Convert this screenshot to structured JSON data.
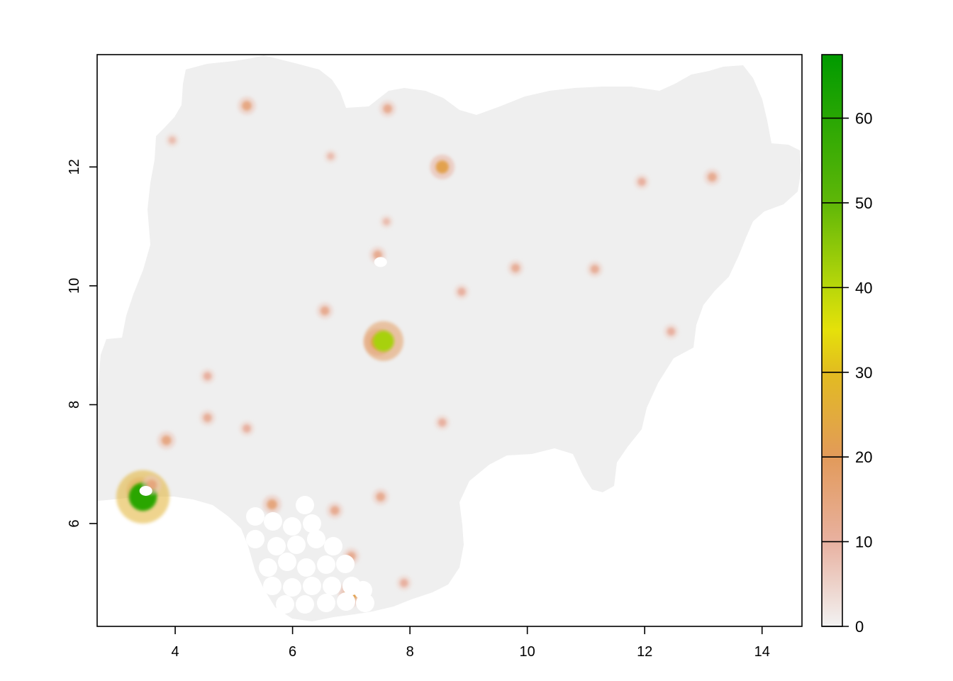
{
  "chart_data": {
    "type": "heatmap",
    "title": "",
    "xlabel": "",
    "ylabel": "",
    "xlim": [
      2.67,
      14.68
    ],
    "ylim": [
      4.27,
      13.89
    ],
    "x_ticks": [
      4,
      6,
      8,
      10,
      12,
      14
    ],
    "y_ticks": [
      6,
      8,
      10,
      12
    ],
    "grid": false,
    "legend": {
      "placement": "right",
      "range": [
        0,
        67.5
      ],
      "ticks": [
        0,
        10,
        20,
        30,
        40,
        50,
        60
      ],
      "color_stops": [
        {
          "value": 0,
          "color": "#F2F2F2"
        },
        {
          "value": 10,
          "color": "#E8B1A0"
        },
        {
          "value": 20,
          "color": "#E29A5A"
        },
        {
          "value": 30,
          "color": "#E2BC20"
        },
        {
          "value": 35,
          "color": "#E5E10A"
        },
        {
          "value": 40,
          "color": "#B9D70A"
        },
        {
          "value": 50,
          "color": "#5FB708"
        },
        {
          "value": 67.5,
          "color": "#009A00"
        }
      ]
    },
    "background_color": "#EFEFEF",
    "hotspots": [
      {
        "x": 3.4,
        "y": 6.55,
        "value": 25
      },
      {
        "x": 3.45,
        "y": 6.45,
        "value": 60
      },
      {
        "x": 3.6,
        "y": 6.65,
        "value": 15
      },
      {
        "x": 3.85,
        "y": 7.4,
        "value": 14
      },
      {
        "x": 7.45,
        "y": 9.05,
        "value": 25
      },
      {
        "x": 7.55,
        "y": 9.07,
        "value": 42
      },
      {
        "x": 8.55,
        "y": 12.0,
        "value": 22
      },
      {
        "x": 7.45,
        "y": 10.52,
        "value": 12
      },
      {
        "x": 5.65,
        "y": 6.32,
        "value": 15
      },
      {
        "x": 7.5,
        "y": 6.45,
        "value": 12
      },
      {
        "x": 6.72,
        "y": 6.22,
        "value": 12
      },
      {
        "x": 7.0,
        "y": 4.82,
        "value": 22
      },
      {
        "x": 8.88,
        "y": 9.9,
        "value": 10
      },
      {
        "x": 5.22,
        "y": 13.03,
        "value": 14
      },
      {
        "x": 7.62,
        "y": 12.98,
        "value": 12
      },
      {
        "x": 13.15,
        "y": 11.83,
        "value": 12
      },
      {
        "x": 4.55,
        "y": 7.78,
        "value": 11
      },
      {
        "x": 4.55,
        "y": 8.48,
        "value": 10
      },
      {
        "x": 6.55,
        "y": 9.58,
        "value": 12
      },
      {
        "x": 9.8,
        "y": 10.3,
        "value": 11
      },
      {
        "x": 11.15,
        "y": 10.28,
        "value": 11
      },
      {
        "x": 12.45,
        "y": 9.23,
        "value": 10
      },
      {
        "x": 8.55,
        "y": 7.7,
        "value": 10
      },
      {
        "x": 5.22,
        "y": 7.6,
        "value": 10
      },
      {
        "x": 7.0,
        "y": 5.45,
        "value": 12
      },
      {
        "x": 7.9,
        "y": 5.0,
        "value": 10
      },
      {
        "x": 11.95,
        "y": 11.75,
        "value": 10
      },
      {
        "x": 7.6,
        "y": 11.08,
        "value": 8
      },
      {
        "x": 3.95,
        "y": 12.45,
        "value": 8
      },
      {
        "x": 6.65,
        "y": 12.18,
        "value": 8
      }
    ],
    "masked_areas": [
      {
        "x": 7.5,
        "y": 10.4
      },
      {
        "x": 3.5,
        "y": 6.55
      }
    ]
  }
}
